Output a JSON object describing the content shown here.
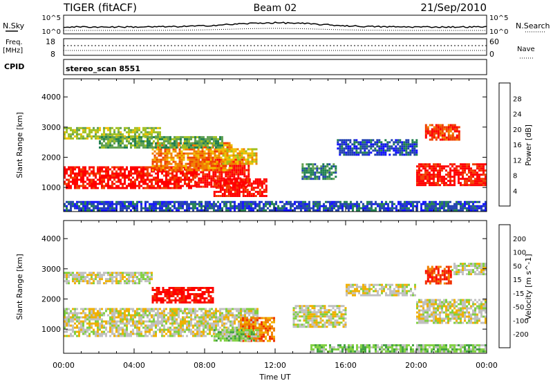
{
  "header": {
    "title": "TIGER (fitACF)",
    "beam": "Beam 02",
    "date": "21/Sep/2010"
  },
  "top_panels": {
    "nsky_label": "N.Sky",
    "nsearch_label": "N.Search",
    "nsky_ticks": [
      "10^5",
      "10^0"
    ],
    "nsearch_ticks": [
      "10^5",
      "10^0"
    ],
    "freq_label_line1": "Freq.",
    "freq_label_line2": "[MHz]",
    "freq_ticks": [
      "18",
      "8"
    ],
    "nave_label": "Nave",
    "nave_ticks": [
      "60",
      "0"
    ],
    "cpid_label": "CPID",
    "cpid_text": "stereo_scan 8551"
  },
  "colors": {
    "power": [
      "#1010ff",
      "#2040b0",
      "#208050",
      "#60a050",
      "#a0c020",
      "#f0c000",
      "#f08000",
      "#f04000",
      "#ff0000"
    ],
    "velocity": [
      "#1020c0",
      "#2060d0",
      "#40a040",
      "#80d040",
      "#c0c0c0",
      "#f0b000",
      "#f08000",
      "#f03000",
      "#ff0000"
    ],
    "ground_scatter": "#c0c0c0"
  },
  "chart_data": [
    {
      "type": "heatmap",
      "name": "power",
      "xlabel": "",
      "ylabel": "Slant Range [km]",
      "x_ticks": [
        "00:00",
        "04:00",
        "08:00",
        "12:00",
        "16:00",
        "20:00",
        "00:00"
      ],
      "xlim": [
        0,
        24
      ],
      "ylim": [
        200,
        4600
      ],
      "y_ticks": [
        1000,
        2000,
        3000,
        4000
      ],
      "colorbar_label": "Power [dB]",
      "colorbar_ticks": [
        "28",
        "24",
        "20",
        "16",
        "12",
        "8",
        "4"
      ],
      "regions": [
        {
          "t0": 0,
          "t1": 7.5,
          "r0": 950,
          "r1": 1700,
          "level": 8
        },
        {
          "t0": 7.5,
          "t1": 10.5,
          "r0": 1050,
          "r1": 1950,
          "level": 8
        },
        {
          "t0": 8.5,
          "t1": 11.5,
          "r0": 700,
          "r1": 1300,
          "level": 8
        },
        {
          "t0": 5,
          "t1": 9.5,
          "r0": 1600,
          "r1": 2500,
          "level": 6
        },
        {
          "t0": 0,
          "t1": 5.5,
          "r0": 2600,
          "r1": 3000,
          "level": 4
        },
        {
          "t0": 2,
          "t1": 9,
          "r0": 2300,
          "r1": 2700,
          "level": 3
        },
        {
          "t0": 9,
          "t1": 11,
          "r0": 1800,
          "r1": 2300,
          "level": 5
        },
        {
          "t0": 13.5,
          "t1": 15.5,
          "r0": 1300,
          "r1": 1800,
          "level": 2
        },
        {
          "t0": 15.5,
          "t1": 20,
          "r0": 2100,
          "r1": 2600,
          "level": 1
        },
        {
          "t0": 20,
          "t1": 24,
          "r0": 1100,
          "r1": 1800,
          "level": 8
        },
        {
          "t0": 20.5,
          "t1": 22.5,
          "r0": 2600,
          "r1": 3100,
          "level": 7
        },
        {
          "t0": 0,
          "t1": 24,
          "r0": 250,
          "r1": 550,
          "level": 1
        }
      ]
    },
    {
      "type": "heatmap",
      "name": "velocity",
      "xlabel": "Time UT",
      "ylabel": "Slant Range [km]",
      "x_ticks": [
        "00:00",
        "04:00",
        "08:00",
        "12:00",
        "16:00",
        "20:00",
        "00:00"
      ],
      "xlim": [
        0,
        24
      ],
      "ylim": [
        200,
        4600
      ],
      "y_ticks": [
        1000,
        2000,
        3000,
        4000
      ],
      "colorbar_label": "Velocity [m s^-1]",
      "colorbar_ticks": [
        "200",
        "100",
        "50",
        "15",
        "-15",
        "-50",
        "-100",
        "-200"
      ],
      "regions": [
        {
          "t0": 0,
          "t1": 11,
          "r0": 800,
          "r1": 1700,
          "level": 4
        },
        {
          "t0": 0,
          "t1": 5,
          "r0": 2500,
          "r1": 2900,
          "level": 4
        },
        {
          "t0": 5,
          "t1": 8.5,
          "r0": 1900,
          "r1": 2400,
          "level": 8
        },
        {
          "t0": 10,
          "t1": 12,
          "r0": 600,
          "r1": 1400,
          "level": 6
        },
        {
          "t0": 8.5,
          "t1": 11,
          "r0": 600,
          "r1": 1000,
          "level": 3
        },
        {
          "t0": 13,
          "t1": 16,
          "r0": 1100,
          "r1": 1800,
          "level": 4
        },
        {
          "t0": 16,
          "t1": 20,
          "r0": 2100,
          "r1": 2500,
          "level": 4
        },
        {
          "t0": 20,
          "t1": 24,
          "r0": 1200,
          "r1": 2000,
          "level": 4
        },
        {
          "t0": 20.5,
          "t1": 22,
          "r0": 2500,
          "r1": 3100,
          "level": 7
        },
        {
          "t0": 22,
          "t1": 24,
          "r0": 2800,
          "r1": 3200,
          "level": 4
        },
        {
          "t0": 14,
          "t1": 24,
          "r0": 250,
          "r1": 500,
          "level": 3
        }
      ]
    }
  ]
}
